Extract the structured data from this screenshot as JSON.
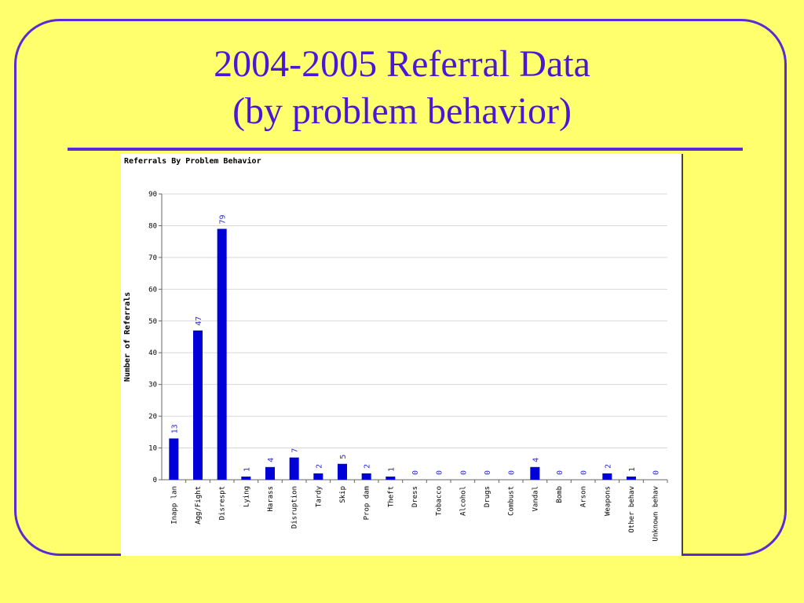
{
  "slide": {
    "title_line1": "2004-2005 Referral Data",
    "title_line2": "(by problem behavior)"
  },
  "colors": {
    "background": "#ffff6e",
    "accent": "#5b2ad6",
    "bar": "#0000d8",
    "value_label": "#2b2bd6"
  },
  "chart_data": {
    "type": "bar",
    "title": "Referrals By Problem Behavior",
    "xlabel": "",
    "ylabel": "Number of Referrals",
    "ylim": [
      0,
      90
    ],
    "yticks": [
      0,
      10,
      20,
      30,
      40,
      50,
      60,
      70,
      80,
      90
    ],
    "grid": true,
    "categories": [
      "Inapp lan",
      "Agg/Fight",
      "Disrespt",
      "Lying",
      "Harass",
      "Disruption",
      "Tardy",
      "Skip",
      "Prop dam",
      "Theft",
      "Dress",
      "Tobacco",
      "Alcohol",
      "Drugs",
      "Combust",
      "Vandal",
      "Bomb",
      "Arson",
      "Weapons",
      "Other behav",
      "Unknown behav"
    ],
    "values": [
      13,
      47,
      79,
      1,
      4,
      7,
      2,
      5,
      2,
      1,
      0,
      0,
      0,
      0,
      0,
      4,
      0,
      0,
      2,
      1,
      0
    ]
  }
}
